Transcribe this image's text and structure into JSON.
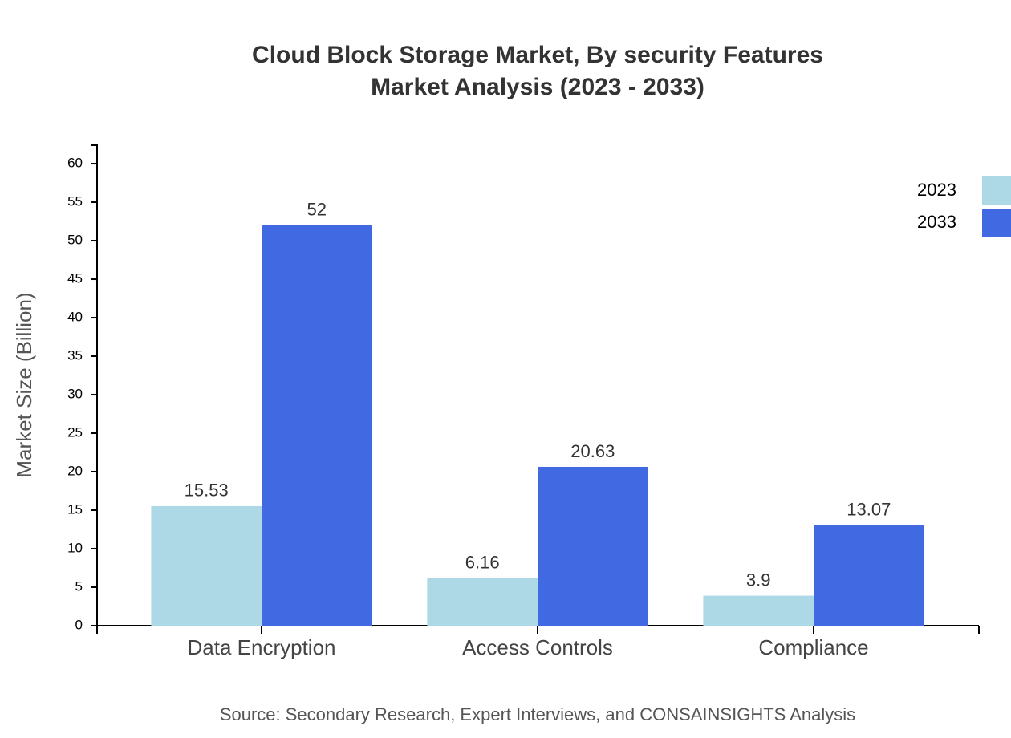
{
  "chart_data": {
    "type": "bar",
    "title": "Cloud Block Storage Market, By security Features",
    "subtitle": "Market Analysis (2023 - 2033)",
    "y_label": "Market Size (Billion)",
    "source": "Source: Secondary Research, Expert Interviews, and CONSAINSIGHTS Analysis",
    "categories": [
      "Data Encryption",
      "Access Controls",
      "Compliance"
    ],
    "series": [
      {
        "name": "2023",
        "color": "#add8e6",
        "values": [
          15.53,
          6.16,
          3.9
        ]
      },
      {
        "name": "2033",
        "color": "#4169e1",
        "values": [
          52,
          20.63,
          13.07
        ]
      }
    ],
    "ylim": [
      0,
      62.4
    ],
    "yticks": [
      0,
      5,
      10,
      15,
      20,
      25,
      30,
      35,
      40,
      45,
      50,
      55,
      60
    ],
    "grid": false,
    "legend": "top-right"
  }
}
